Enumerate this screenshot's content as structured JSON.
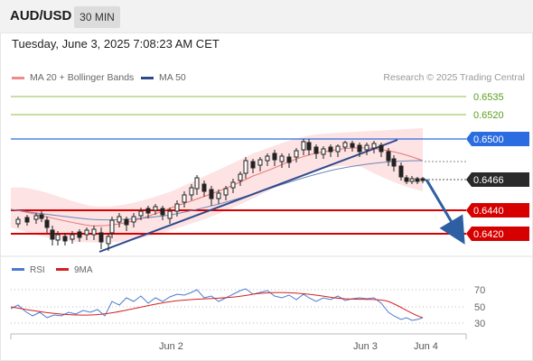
{
  "header": {
    "symbol": "AUD/USD",
    "timeframe": "30 MIN"
  },
  "datetime": "Tuesday, June 3, 2025 7:08:23 AM CET",
  "legend": [
    {
      "label": "MA 20 + Bollinger Bands",
      "color": "#f08a8a"
    },
    {
      "label": "MA 50",
      "color": "#2e4a8c"
    }
  ],
  "attribution": "Research © 2025 Trading Central",
  "price_levels": [
    {
      "label": "0.6535",
      "kind": "green-line"
    },
    {
      "label": "0.6520",
      "kind": "green-line"
    },
    {
      "label": "0.6500",
      "kind": "blue-box"
    },
    {
      "label": "0.6466",
      "kind": "current-price"
    },
    {
      "label": "0.6440",
      "kind": "red-box"
    },
    {
      "label": "0.6420",
      "kind": "red-box"
    }
  ],
  "rsi": {
    "legend": [
      {
        "label": "RSI",
        "color": "#4a7bd0"
      },
      {
        "label": "9MA",
        "color": "#d62020"
      }
    ],
    "levels": [
      "70",
      "50",
      "30"
    ]
  },
  "x_axis": [
    "Jun 2",
    "Jun 3",
    "Jun 4"
  ],
  "colors": {
    "up": "#ffffff",
    "down": "#1a1a1a",
    "support": "#d60000",
    "resistance": "#2b6de0",
    "target": "#8cc24a",
    "trendline": "#2e4a8c",
    "arrow": "#2e5fa3"
  }
}
